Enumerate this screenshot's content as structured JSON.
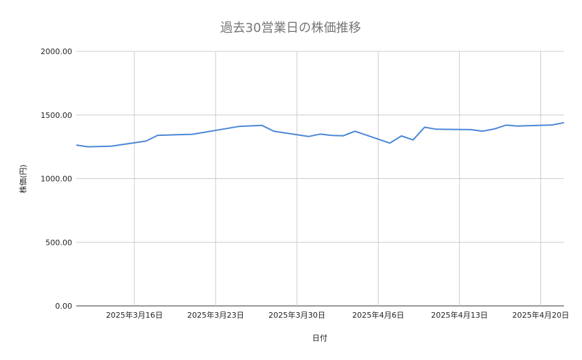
{
  "chart_data": {
    "type": "line",
    "title": "過去30営業日の株価推移",
    "xlabel": "日付",
    "ylabel": "株価(円)",
    "ylim": [
      0,
      2000
    ],
    "yticks": [
      "0.00",
      "500.00",
      "1000.00",
      "1500.00",
      "2000.00"
    ],
    "ytick_values": [
      0,
      500,
      1000,
      1500,
      2000
    ],
    "xlim": [
      "2025-03-11",
      "2025-04-22"
    ],
    "xticks": [
      "2025年3月16日",
      "2025年3月23日",
      "2025年3月30日",
      "2025年4月6日",
      "2025年4月13日",
      "2025年4月20日"
    ],
    "xtick_dates": [
      "2025-03-16",
      "2025-03-23",
      "2025-03-30",
      "2025-04-06",
      "2025-04-13",
      "2025-04-20"
    ],
    "grid": true,
    "line_color": "#4a86d8",
    "series": [
      {
        "x": [
          "2025-03-11",
          "2025-03-12",
          "2025-03-14",
          "2025-03-17",
          "2025-03-18",
          "2025-03-21",
          "2025-03-25",
          "2025-03-27",
          "2025-03-28",
          "2025-03-31",
          "2025-04-01",
          "2025-04-02",
          "2025-04-03",
          "2025-04-04",
          "2025-04-07",
          "2025-04-08",
          "2025-04-09",
          "2025-04-10",
          "2025-04-11",
          "2025-04-14",
          "2025-04-15",
          "2025-04-16",
          "2025-04-17",
          "2025-04-18",
          "2025-04-21",
          "2025-04-22"
        ],
        "values": [
          1264,
          1250,
          1255,
          1295,
          1340,
          1348,
          1410,
          1418,
          1373,
          1331,
          1350,
          1339,
          1337,
          1372,
          1279,
          1335,
          1304,
          1404,
          1388,
          1385,
          1373,
          1390,
          1420,
          1413,
          1422,
          1440
        ]
      }
    ]
  }
}
